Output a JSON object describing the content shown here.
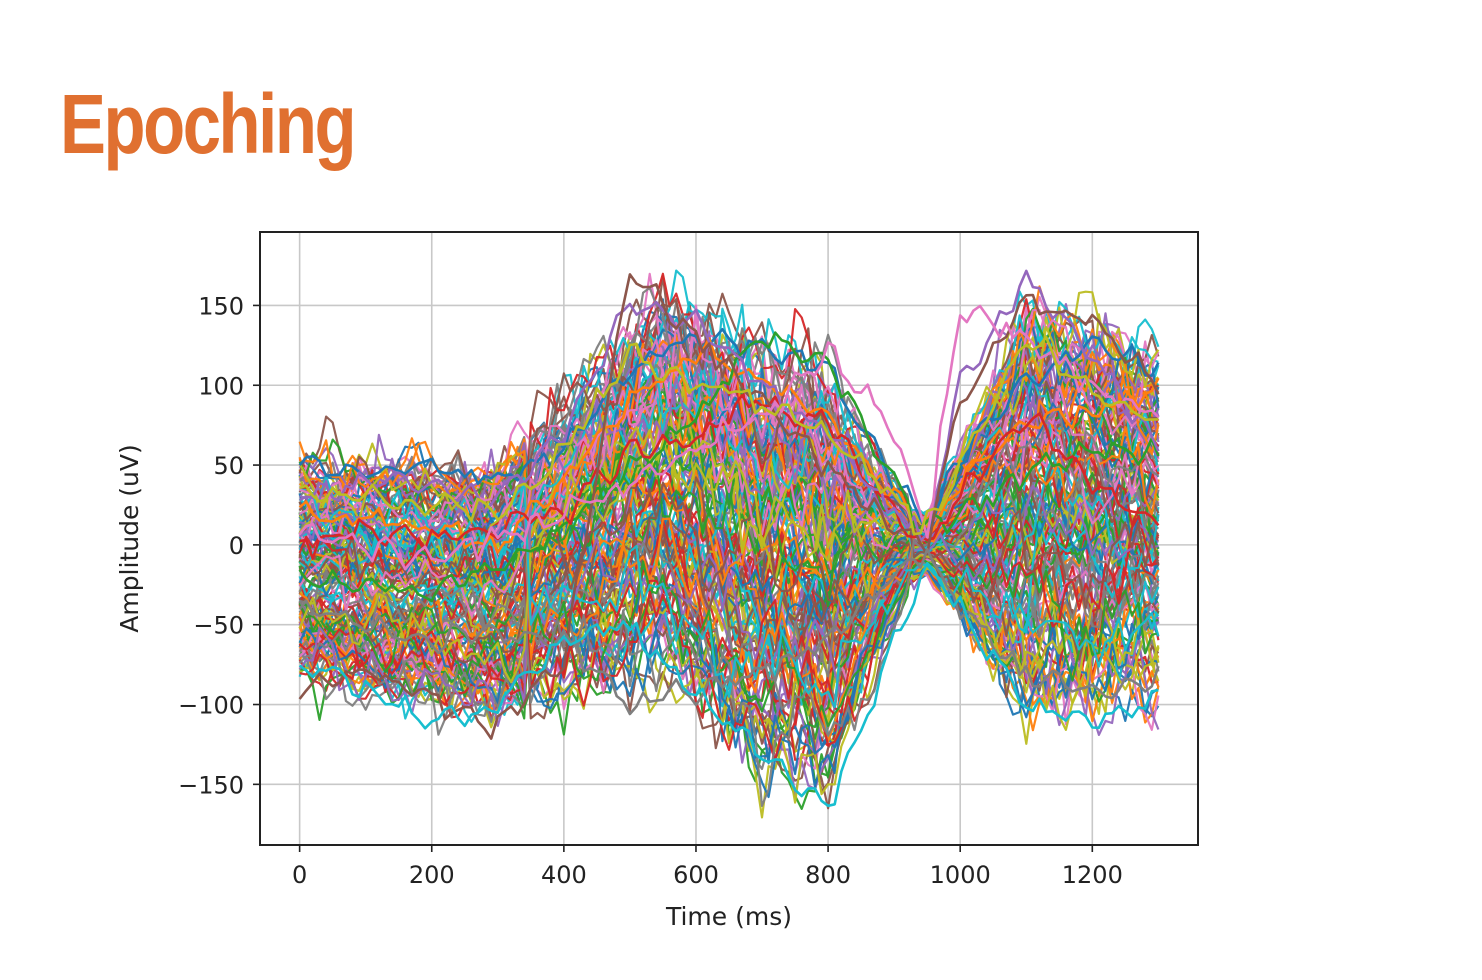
{
  "slide": {
    "title": "Epoching",
    "title_color": "#E07030"
  },
  "chart_data": {
    "type": "line",
    "title": "",
    "xlabel": "Time (ms)",
    "ylabel": "Amplitude (uV)",
    "xlim": [
      -60,
      1360
    ],
    "ylim": [
      -188,
      196
    ],
    "xticks": [
      0,
      200,
      400,
      600,
      800,
      1000,
      1200
    ],
    "yticks": [
      -150,
      -100,
      -50,
      0,
      50,
      100,
      150
    ],
    "xtick_labels": [
      "0",
      "200",
      "400",
      "600",
      "800",
      "1000",
      "1200"
    ],
    "ytick_labels": [
      "−150",
      "−100",
      "−50",
      "0",
      "50",
      "100",
      "150"
    ],
    "grid": true,
    "legend": "none",
    "x_start": 0,
    "x_end": 1300,
    "x_step": 10,
    "color_cycle": [
      "#1f77b4",
      "#ff7f0e",
      "#2ca02c",
      "#d62728",
      "#9467bd",
      "#8c564b",
      "#e377c2",
      "#7f7f7f",
      "#bcbd22",
      "#17becf"
    ],
    "trial_count": 150,
    "trial_amplitude_envelope": {
      "x": [
        0,
        300,
        550,
        700,
        800,
        920,
        950,
        1100,
        1300
      ],
      "min": [
        -90,
        -110,
        -90,
        -150,
        -165,
        -30,
        -20,
        -115,
        -100
      ],
      "max": [
        60,
        55,
        175,
        140,
        130,
        30,
        20,
        165,
        130
      ]
    },
    "series": [
      {
        "name": "",
        "x": [
          0,
          100,
          200,
          300,
          400,
          500,
          600,
          700,
          800,
          900,
          950,
          1000,
          1100,
          1200,
          1300
        ],
        "y": [
          55,
          45,
          50,
          40,
          60,
          110,
          130,
          125,
          110,
          40,
          10,
          55,
          105,
          125,
          110
        ]
      },
      {
        "name": "",
        "x": [
          0,
          100,
          200,
          300,
          400,
          500,
          600,
          700,
          800,
          900,
          950,
          1000,
          1100,
          1200,
          1300
        ],
        "y": [
          20,
          15,
          10,
          0,
          40,
          90,
          120,
          105,
          80,
          30,
          5,
          40,
          75,
          85,
          100
        ]
      },
      {
        "name": "",
        "x": [
          0,
          100,
          200,
          300,
          400,
          500,
          600,
          700,
          800,
          900,
          950,
          1000,
          1100,
          1200,
          1300
        ],
        "y": [
          -20,
          -25,
          -30,
          -15,
          10,
          50,
          80,
          130,
          115,
          40,
          10,
          20,
          45,
          60,
          55
        ]
      },
      {
        "name": "",
        "x": [
          0,
          100,
          200,
          300,
          400,
          500,
          600,
          700,
          800,
          900,
          950,
          1000,
          1100,
          1200,
          1300
        ],
        "y": [
          0,
          10,
          5,
          10,
          20,
          60,
          70,
          90,
          75,
          20,
          0,
          30,
          80,
          40,
          10
        ]
      },
      {
        "name": "",
        "x": [
          0,
          100,
          200,
          300,
          400,
          500,
          600,
          700,
          800,
          900,
          950,
          1000,
          1100,
          1200,
          1300
        ],
        "y": [
          30,
          40,
          35,
          30,
          70,
          150,
          140,
          100,
          70,
          20,
          5,
          100,
          165,
          120,
          60
        ]
      },
      {
        "name": "",
        "x": [
          0,
          100,
          200,
          300,
          400,
          500,
          600,
          700,
          800,
          900,
          950,
          1000,
          1100,
          1200,
          1300
        ],
        "y": [
          -90,
          -80,
          -95,
          -115,
          -70,
          170,
          130,
          90,
          50,
          10,
          0,
          90,
          155,
          140,
          100
        ]
      },
      {
        "name": "",
        "x": [
          0,
          100,
          200,
          300,
          400,
          500,
          600,
          700,
          800,
          900,
          950,
          1000,
          1100,
          1200,
          1300
        ],
        "y": [
          10,
          0,
          -10,
          5,
          20,
          40,
          60,
          80,
          120,
          70,
          10,
          150,
          130,
          100,
          80
        ]
      },
      {
        "name": "",
        "x": [
          0,
          100,
          200,
          300,
          400,
          500,
          600,
          700,
          800,
          900,
          950,
          1000,
          1100,
          1200,
          1300
        ],
        "y": [
          -40,
          -50,
          -60,
          -55,
          -60,
          -100,
          -90,
          -80,
          -60,
          -20,
          -5,
          -40,
          -80,
          -90,
          -85
        ]
      },
      {
        "name": "",
        "x": [
          0,
          100,
          200,
          300,
          400,
          500,
          600,
          700,
          800,
          900,
          950,
          1000,
          1100,
          1200,
          1300
        ],
        "y": [
          35,
          30,
          25,
          20,
          60,
          120,
          100,
          90,
          70,
          30,
          10,
          50,
          130,
          100,
          75
        ]
      },
      {
        "name": "",
        "x": [
          0,
          100,
          200,
          300,
          400,
          500,
          600,
          700,
          800,
          900,
          950,
          1000,
          1100,
          1200,
          1300
        ],
        "y": [
          -75,
          -90,
          -110,
          -100,
          -60,
          -50,
          -95,
          -130,
          -165,
          -60,
          -10,
          -40,
          -100,
          -110,
          -95
        ]
      }
    ]
  }
}
